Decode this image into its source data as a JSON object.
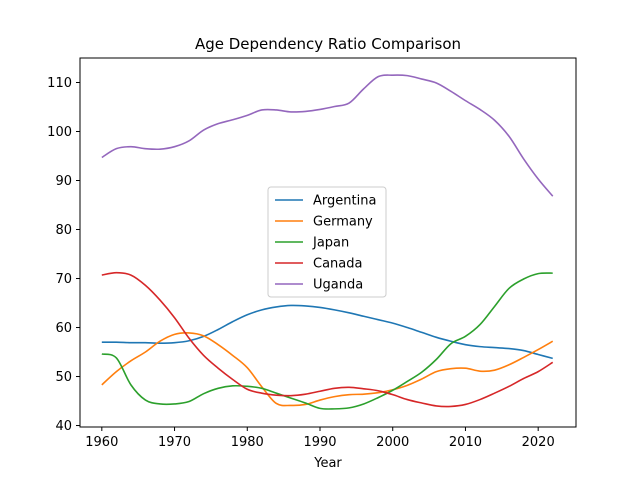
{
  "chart_data": {
    "type": "line",
    "title": "Age Dependency Ratio Comparison",
    "xlabel": "Year",
    "ylabel": "",
    "xlim": [
      1957,
      2025.2
    ],
    "ylim": [
      39.7,
      115.0
    ],
    "x_ticks": [
      1960,
      1970,
      1980,
      1990,
      2000,
      2010,
      2020
    ],
    "y_ticks": [
      40,
      50,
      60,
      70,
      80,
      90,
      100,
      110
    ],
    "grid": false,
    "legend_position": "center",
    "x": [
      1960,
      1962,
      1964,
      1966,
      1968,
      1970,
      1972,
      1974,
      1976,
      1978,
      1980,
      1982,
      1984,
      1986,
      1988,
      1990,
      1992,
      1994,
      1996,
      1998,
      2000,
      2002,
      2004,
      2006,
      2008,
      2010,
      2012,
      2014,
      2016,
      2018,
      2020,
      2022
    ],
    "series": [
      {
        "name": "Argentina",
        "color": "#1f77b4",
        "values": [
          57.0,
          57.0,
          56.9,
          56.9,
          56.8,
          56.9,
          57.3,
          58.2,
          59.6,
          61.2,
          62.6,
          63.6,
          64.2,
          64.5,
          64.4,
          64.1,
          63.6,
          63.0,
          62.3,
          61.6,
          60.9,
          60.0,
          59.0,
          58.0,
          57.2,
          56.5,
          56.1,
          55.9,
          55.7,
          55.3,
          54.5,
          53.7
        ]
      },
      {
        "name": "Germany",
        "color": "#ff7f0e",
        "values": [
          48.3,
          51.0,
          53.2,
          55.0,
          57.2,
          58.6,
          58.9,
          58.3,
          56.5,
          54.3,
          51.8,
          47.9,
          44.5,
          44.1,
          44.3,
          45.2,
          45.9,
          46.3,
          46.4,
          46.7,
          47.3,
          48.2,
          49.5,
          51.0,
          51.6,
          51.7,
          51.1,
          51.3,
          52.4,
          53.9,
          55.5,
          57.2
        ]
      },
      {
        "name": "Japan",
        "color": "#2ca02c",
        "values": [
          54.6,
          53.8,
          48.3,
          45.2,
          44.4,
          44.4,
          44.9,
          46.5,
          47.6,
          48.1,
          48.0,
          47.6,
          46.6,
          45.6,
          44.6,
          43.5,
          43.4,
          43.6,
          44.4,
          45.7,
          47.2,
          49.0,
          50.9,
          53.5,
          56.7,
          58.2,
          60.6,
          64.3,
          68.0,
          69.9,
          71.0,
          71.1
        ]
      },
      {
        "name": "Canada",
        "color": "#d62728",
        "values": [
          70.7,
          71.2,
          70.7,
          68.6,
          65.6,
          62.0,
          57.8,
          54.3,
          51.7,
          49.4,
          47.4,
          46.6,
          46.2,
          46.1,
          46.4,
          47.0,
          47.6,
          47.8,
          47.5,
          47.1,
          46.3,
          45.3,
          44.6,
          44.0,
          43.9,
          44.3,
          45.3,
          46.6,
          48.0,
          49.6,
          51.0,
          52.9
        ]
      },
      {
        "name": "Uganda",
        "color": "#9467bd",
        "values": [
          94.7,
          96.5,
          96.9,
          96.5,
          96.4,
          96.9,
          98.1,
          100.3,
          101.6,
          102.4,
          103.3,
          104.4,
          104.4,
          104.0,
          104.1,
          104.5,
          105.1,
          105.8,
          108.7,
          111.2,
          111.5,
          111.4,
          110.7,
          109.9,
          108.2,
          106.3,
          104.5,
          102.3,
          99.0,
          94.4,
          90.3,
          86.8
        ]
      }
    ]
  }
}
